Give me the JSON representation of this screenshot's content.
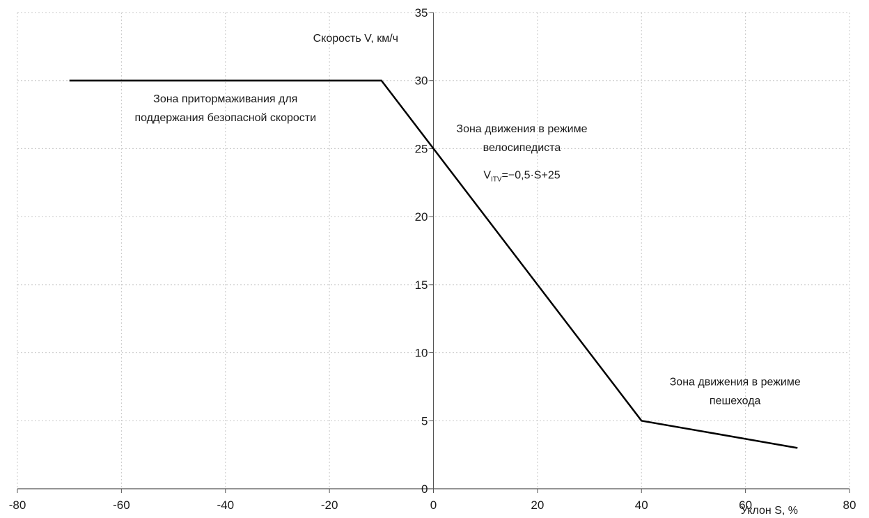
{
  "chart_data": {
    "type": "line",
    "xlabel": "Уклон S, %",
    "ylabel": "Скорость V, км/ч",
    "xlim": [
      -80,
      80
    ],
    "ylim": [
      0,
      35
    ],
    "x_ticks": [
      "-80",
      "-60",
      "-40",
      "-20",
      "0",
      "20",
      "40",
      "60",
      "80"
    ],
    "y_ticks": [
      "0",
      "5",
      "10",
      "15",
      "20",
      "25",
      "30",
      "35"
    ],
    "grid": true,
    "legend": "none",
    "colors": {
      "line": "#000000",
      "grid": "#c8c8c8",
      "axis": "#555555"
    },
    "series": [
      {
        "x": [
          -70,
          -10,
          40,
          70
        ],
        "y": [
          30,
          30,
          5,
          3
        ]
      }
    ],
    "annotations": [
      {
        "lines": [
          "Зона притормаживания для",
          "поддержания безопасной скорости"
        ],
        "x": -40,
        "y": 28.4
      },
      {
        "lines": [
          "Зона движения в режиме",
          "велосипедиста"
        ],
        "x": 17,
        "y": 26.2
      },
      {
        "formula_main": "V",
        "formula_sub": "ITV",
        "formula_rest": "=−0,5·S+25",
        "x": 17,
        "y": 22.8
      },
      {
        "lines": [
          "Зона движения в режиме",
          "пешехода"
        ],
        "x": 58,
        "y": 7.6
      }
    ]
  }
}
